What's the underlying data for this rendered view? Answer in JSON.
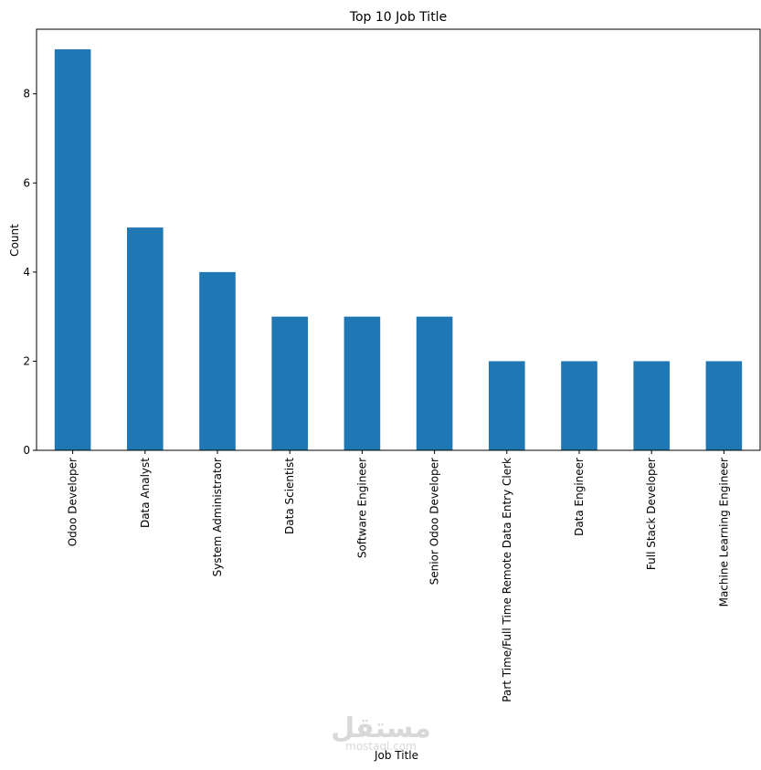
{
  "chart_data": {
    "type": "bar",
    "title": "Top 10 Job Title",
    "xlabel": "Job Title",
    "ylabel": "Count",
    "categories": [
      "Odoo Developer",
      "Data Analyst",
      "System Administrator",
      "Data Scientist",
      "Software Engineer",
      "Senior Odoo Developer",
      "Part Time/Full Time Remote Data Entry Clerk",
      "Data Engineer",
      "Full Stack Developer",
      "Machine Learning Engineer"
    ],
    "values": [
      9,
      5,
      4,
      3,
      3,
      3,
      2,
      2,
      2,
      2
    ],
    "ylim": [
      0,
      9.45
    ],
    "yticks": [
      0,
      2,
      4,
      6,
      8
    ],
    "bar_color": "#1f77b4",
    "grid": false,
    "legend": "none"
  },
  "watermark": {
    "arabic": "مستقل",
    "latin": "mostaql.com"
  }
}
